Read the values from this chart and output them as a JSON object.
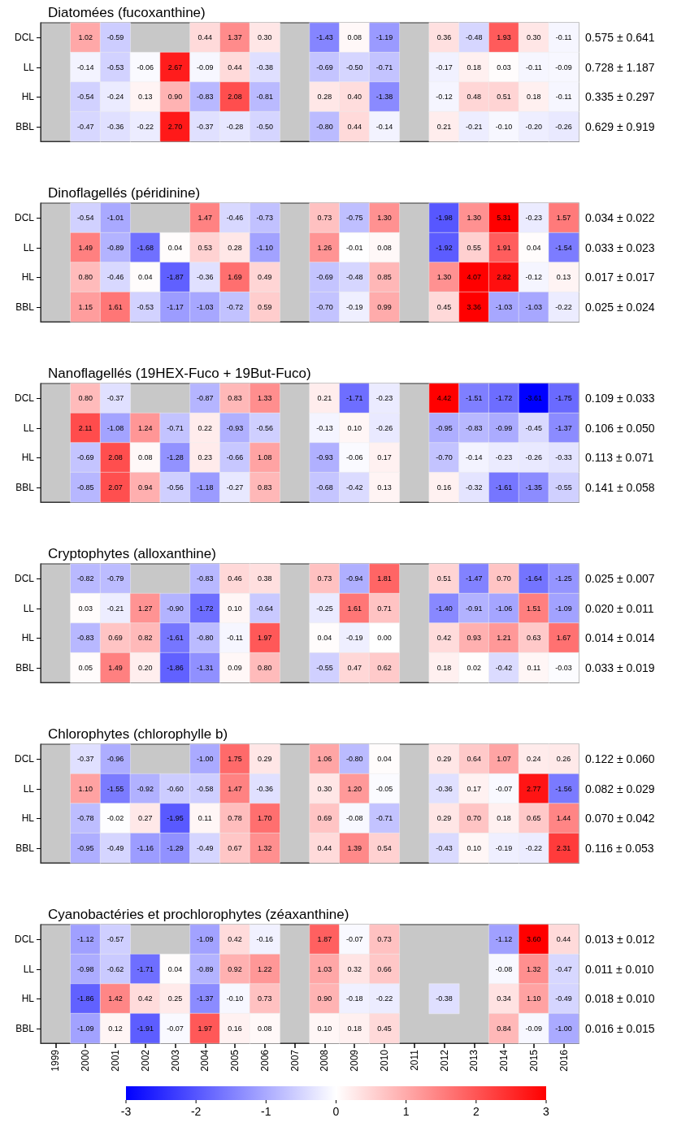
{
  "chart_data": [
    {
      "type": "heatmap",
      "title": "Diatomées (fucoxanthine)",
      "tick_labels": "y",
      "categories": [
        "1999",
        "2000",
        "2001",
        "2002",
        "2003",
        "2004",
        "2005",
        "2006",
        "2007",
        "2008",
        "2009",
        "2010",
        "2011",
        "2012",
        "2013",
        "2014",
        "2015",
        "2016"
      ],
      "y_categories": [
        "DCL",
        "LL",
        "HL",
        "BBL"
      ],
      "y2_categories": [
        "0.575 ± 0.641",
        "0.728 ± 1.187",
        "0.335 ± 0.297",
        "0.629 ± 0.919"
      ],
      "cells": [
        [
          null,
          1.02,
          -0.59,
          null,
          null,
          0.44,
          1.37,
          0.3,
          null,
          -1.43,
          0.08,
          -1.19,
          null,
          0.36,
          -0.48,
          1.93,
          0.3,
          -0.11
        ],
        [
          null,
          -0.14,
          -0.53,
          -0.06,
          2.67,
          -0.09,
          0.44,
          -0.38,
          null,
          -0.69,
          -0.5,
          -0.71,
          null,
          -0.17,
          0.18,
          0.03,
          -0.11,
          -0.09
        ],
        [
          null,
          -0.54,
          -0.24,
          0.13,
          0.9,
          -0.83,
          2.08,
          -0.81,
          null,
          0.28,
          0.4,
          -1.38,
          null,
          -0.12,
          0.48,
          0.51,
          0.18,
          -0.11
        ],
        [
          null,
          -0.47,
          -0.36,
          -0.22,
          2.7,
          -0.37,
          -0.28,
          -0.5,
          null,
          -0.8,
          0.44,
          -0.14,
          null,
          0.21,
          -0.21,
          -0.1,
          -0.2,
          -0.26
        ]
      ],
      "cell_labels": [
        [
          null,
          "1.02",
          "-0.59",
          null,
          null,
          "0.44",
          "1.37",
          "0.30",
          null,
          "-1.43",
          "0.08",
          "-1.19",
          null,
          "0.36",
          "-0.48",
          "1.93",
          "0.30",
          "-0.11"
        ],
        [
          null,
          "-0.14",
          "-0.53",
          "-0.06",
          "2.67",
          "-0.09",
          "0.44",
          "-0.38",
          null,
          "-0.69",
          "-0.50",
          "-0.71",
          null,
          "-0.17",
          "0.18",
          "0.03",
          "-0.11",
          "-0.09"
        ],
        [
          null,
          "-0.54",
          "-0.24",
          "0.13",
          "0.90",
          "-0.83",
          "2.08",
          "-0.81",
          null,
          "0.28",
          "0.40",
          "-1.38",
          null,
          "-0.12",
          "0.48",
          "0.51",
          "0.18",
          "-0.11"
        ],
        [
          null,
          "-0.47",
          "-0.36",
          "-0.22",
          "2.70",
          "-0.37",
          "-0.28",
          "-0.50",
          null,
          "-0.80",
          "0.44",
          "-0.14",
          null,
          "0.21",
          "-0.21",
          "-0.10",
          "-0.20",
          "-0.26"
        ]
      ]
    },
    {
      "type": "heatmap",
      "title": "Dinoflagellés (péridinine)",
      "tick_labels": "y",
      "categories": [
        "1999",
        "2000",
        "2001",
        "2002",
        "2003",
        "2004",
        "2005",
        "2006",
        "2007",
        "2008",
        "2009",
        "2010",
        "2011",
        "2012",
        "2013",
        "2014",
        "2015",
        "2016"
      ],
      "y_categories": [
        "DCL",
        "LL",
        "HL",
        "BBL"
      ],
      "y2_categories": [
        "0.034 ± 0.022",
        "0.033 ± 0.023",
        "0.017 ± 0.017",
        "0.025 ± 0.024"
      ],
      "cells": [
        [
          null,
          -0.54,
          -1.01,
          null,
          null,
          1.47,
          -0.46,
          -0.73,
          null,
          0.73,
          -0.75,
          1.3,
          null,
          -1.98,
          1.3,
          5.31,
          -0.23,
          1.57
        ],
        [
          null,
          1.49,
          -0.89,
          -1.68,
          0.04,
          0.53,
          0.28,
          -1.1,
          null,
          1.26,
          -0.01,
          0.08,
          null,
          -1.92,
          0.55,
          1.91,
          0.04,
          -1.54
        ],
        [
          null,
          0.8,
          -0.46,
          0.04,
          -1.87,
          -0.36,
          1.69,
          0.49,
          null,
          -0.69,
          -0.48,
          0.85,
          null,
          1.3,
          4.07,
          2.82,
          -0.12,
          0.13
        ],
        [
          null,
          1.15,
          1.61,
          -0.53,
          -1.17,
          -1.03,
          -0.72,
          0.59,
          null,
          -0.7,
          -0.19,
          0.99,
          null,
          0.45,
          3.36,
          -1.03,
          -1.03,
          -0.22
        ]
      ],
      "cell_labels": [
        [
          null,
          "-0.54",
          "-1.01",
          null,
          null,
          "1.47",
          "-0.46",
          "-0.73",
          null,
          "0.73",
          "-0.75",
          "1.30",
          null,
          "-1.98",
          "1.30",
          "5.31",
          "-0.23",
          "1.57"
        ],
        [
          null,
          "1.49",
          "-0.89",
          "-1.68",
          "0.04",
          "0.53",
          "0.28",
          "-1.10",
          null,
          "1.26",
          "-0.01",
          "0.08",
          null,
          "-1.92",
          "0.55",
          "1.91",
          "0.04",
          "-1.54"
        ],
        [
          null,
          "0.80",
          "-0.46",
          "0.04",
          "-1.87",
          "-0.36",
          "1.69",
          "0.49",
          null,
          "-0.69",
          "-0.48",
          "0.85",
          null,
          "1.30",
          "4.07",
          "2.82",
          "-0.12",
          "0.13"
        ],
        [
          null,
          "1.15",
          "1.61",
          "-0.53",
          "-1.17",
          "-1.03",
          "-0.72",
          "0.59",
          null,
          "-0.70",
          "-0.19",
          "0.99",
          null,
          "0.45",
          "3.36",
          "-1.03",
          "-1.03",
          "-0.22"
        ]
      ]
    },
    {
      "type": "heatmap",
      "title": "Nanoflagellés (19HEX-Fuco + 19But-Fuco)",
      "tick_labels": "y",
      "categories": [
        "1999",
        "2000",
        "2001",
        "2002",
        "2003",
        "2004",
        "2005",
        "2006",
        "2007",
        "2008",
        "2009",
        "2010",
        "2011",
        "2012",
        "2013",
        "2014",
        "2015",
        "2016"
      ],
      "y_categories": [
        "DCL",
        "LL",
        "HL",
        "BBL"
      ],
      "y2_categories": [
        "0.109 ± 0.033",
        "0.106 ± 0.050",
        "0.113 ± 0.071",
        "0.141 ± 0.058"
      ],
      "cells": [
        [
          null,
          0.8,
          -0.37,
          null,
          null,
          -0.87,
          0.83,
          1.33,
          null,
          0.21,
          -1.71,
          -0.23,
          null,
          4.42,
          -1.51,
          -1.72,
          -3.61,
          -1.75
        ],
        [
          null,
          2.11,
          -1.08,
          1.24,
          -0.71,
          0.22,
          -0.93,
          -0.56,
          null,
          -0.13,
          0.1,
          -0.26,
          null,
          -0.95,
          -0.83,
          -0.99,
          -0.45,
          -1.37
        ],
        [
          null,
          -0.69,
          2.08,
          0.08,
          -1.28,
          0.23,
          -0.66,
          1.08,
          null,
          -0.93,
          -0.06,
          0.17,
          null,
          -0.7,
          -0.14,
          -0.23,
          -0.26,
          -0.33
        ],
        [
          null,
          -0.85,
          2.07,
          0.94,
          -0.56,
          -1.18,
          -0.27,
          0.83,
          null,
          -0.68,
          -0.42,
          0.13,
          null,
          0.16,
          -0.32,
          -1.61,
          -1.35,
          -0.55
        ]
      ],
      "cell_labels": [
        [
          null,
          "0.80",
          "-0.37",
          null,
          null,
          "-0.87",
          "0.83",
          "1.33",
          null,
          "0.21",
          "-1.71",
          "-0.23",
          null,
          "4.42",
          "-1.51",
          "-1.72",
          "-3.61",
          "-1.75"
        ],
        [
          null,
          "2.11",
          "-1.08",
          "1.24",
          "-0.71",
          "0.22",
          "-0.93",
          "-0.56",
          null,
          "-0.13",
          "0.10",
          "-0.26",
          null,
          "-0.95",
          "-0.83",
          "-0.99",
          "-0.45",
          "-1.37"
        ],
        [
          null,
          "-0.69",
          "2.08",
          "0.08",
          "-1.28",
          "0.23",
          "-0.66",
          "1.08",
          null,
          "-0.93",
          "-0.06",
          "0.17",
          null,
          "-0.70",
          "-0.14",
          "-0.23",
          "-0.26",
          "-0.33"
        ],
        [
          null,
          "-0.85",
          "2.07",
          "0.94",
          "-0.56",
          "-1.18",
          "-0.27",
          "0.83",
          null,
          "-0.68",
          "-0.42",
          "0.13",
          null,
          "0.16",
          "-0.32",
          "-1.61",
          "-1.35",
          "-0.55"
        ]
      ]
    },
    {
      "type": "heatmap",
      "title": "Cryptophytes (alloxanthine)",
      "tick_labels": "y",
      "categories": [
        "1999",
        "2000",
        "2001",
        "2002",
        "2003",
        "2004",
        "2005",
        "2006",
        "2007",
        "2008",
        "2009",
        "2010",
        "2011",
        "2012",
        "2013",
        "2014",
        "2015",
        "2016"
      ],
      "y_categories": [
        "DCL",
        "LL",
        "HL",
        "BBL"
      ],
      "y2_categories": [
        "0.025 ± 0.007",
        "0.020 ± 0.011",
        "0.014 ± 0.014",
        "0.033 ± 0.019"
      ],
      "cells": [
        [
          null,
          -0.82,
          -0.79,
          null,
          null,
          -0.83,
          0.46,
          0.38,
          null,
          0.73,
          -0.94,
          1.81,
          null,
          0.51,
          -1.47,
          0.7,
          -1.64,
          -1.25
        ],
        [
          null,
          0.03,
          -0.21,
          1.27,
          -0.9,
          -1.72,
          0.1,
          -0.64,
          null,
          -0.25,
          1.61,
          0.71,
          null,
          -1.4,
          -0.91,
          -1.06,
          1.51,
          -1.09
        ],
        [
          null,
          -0.83,
          0.69,
          0.82,
          -1.61,
          -0.8,
          -0.11,
          1.97,
          null,
          0.04,
          -0.19,
          0.0,
          null,
          0.42,
          0.93,
          1.21,
          0.63,
          1.67
        ],
        [
          null,
          0.05,
          1.49,
          0.2,
          -1.86,
          -1.31,
          0.09,
          0.8,
          null,
          -0.55,
          0.47,
          0.62,
          null,
          0.18,
          0.02,
          -0.42,
          0.11,
          -0.03
        ]
      ],
      "cell_labels": [
        [
          null,
          "-0.82",
          "-0.79",
          null,
          null,
          "-0.83",
          "0.46",
          "0.38",
          null,
          "0.73",
          "-0.94",
          "1.81",
          null,
          "0.51",
          "-1.47",
          "0.70",
          "-1.64",
          "-1.25"
        ],
        [
          null,
          "0.03",
          "-0.21",
          "1.27",
          "-0.90",
          "-1.72",
          "0.10",
          "-0.64",
          null,
          "-0.25",
          "1.61",
          "0.71",
          null,
          "-1.40",
          "-0.91",
          "-1.06",
          "1.51",
          "-1.09"
        ],
        [
          null,
          "-0.83",
          "0.69",
          "0.82",
          "-1.61",
          "-0.80",
          "-0.11",
          "1.97",
          null,
          "0.04",
          "-0.19",
          "0.00",
          null,
          "0.42",
          "0.93",
          "1.21",
          "0.63",
          "1.67"
        ],
        [
          null,
          "0.05",
          "1.49",
          "0.20",
          "-1.86",
          "-1.31",
          "0.09",
          "0.80",
          null,
          "-0.55",
          "0.47",
          "0.62",
          null,
          "0.18",
          "0.02",
          "-0.42",
          "0.11",
          "-0.03"
        ]
      ]
    },
    {
      "type": "heatmap",
      "title": "Chlorophytes (chlorophylle b)",
      "tick_labels": "y",
      "categories": [
        "1999",
        "2000",
        "2001",
        "2002",
        "2003",
        "2004",
        "2005",
        "2006",
        "2007",
        "2008",
        "2009",
        "2010",
        "2011",
        "2012",
        "2013",
        "2014",
        "2015",
        "2016"
      ],
      "y_categories": [
        "DCL",
        "LL",
        "HL",
        "BBL"
      ],
      "y2_categories": [
        "0.122 ± 0.060",
        "0.082 ± 0.029",
        "0.070 ± 0.042",
        "0.116 ± 0.053"
      ],
      "cells": [
        [
          null,
          -0.37,
          -0.96,
          null,
          null,
          -1.0,
          1.75,
          0.29,
          null,
          1.06,
          -0.8,
          0.04,
          null,
          0.29,
          0.64,
          1.07,
          0.24,
          0.26
        ],
        [
          null,
          1.1,
          -1.55,
          -0.92,
          -0.6,
          -0.58,
          1.47,
          -0.36,
          null,
          0.3,
          1.2,
          -0.05,
          null,
          -0.36,
          0.17,
          -0.07,
          2.77,
          -1.56
        ],
        [
          null,
          -0.78,
          -0.02,
          0.27,
          -1.95,
          0.11,
          0.78,
          1.7,
          null,
          0.69,
          -0.08,
          -0.71,
          null,
          0.29,
          0.7,
          0.18,
          0.65,
          1.44
        ],
        [
          null,
          -0.95,
          -0.49,
          -1.16,
          -1.29,
          -0.49,
          0.67,
          1.32,
          null,
          0.44,
          1.39,
          0.54,
          null,
          -0.43,
          0.1,
          -0.19,
          -0.22,
          2.31
        ]
      ],
      "cell_labels": [
        [
          null,
          "-0.37",
          "-0.96",
          null,
          null,
          "-1.00",
          "1.75",
          "0.29",
          null,
          "1.06",
          "-0.80",
          "0.04",
          null,
          "0.29",
          "0.64",
          "1.07",
          "0.24",
          "0.26"
        ],
        [
          null,
          "1.10",
          "-1.55",
          "-0.92",
          "-0.60",
          "-0.58",
          "1.47",
          "-0.36",
          null,
          "0.30",
          "1.20",
          "-0.05",
          null,
          "-0.36",
          "0.17",
          "-0.07",
          "2.77",
          "-1.56"
        ],
        [
          null,
          "-0.78",
          "-0.02",
          "0.27",
          "-1.95",
          "0.11",
          "0.78",
          "1.70",
          null,
          "0.69",
          "-0.08",
          "-0.71",
          null,
          "0.29",
          "0.70",
          "0.18",
          "0.65",
          "1.44"
        ],
        [
          null,
          "-0.95",
          "-0.49",
          "-1.16",
          "-1.29",
          "-0.49",
          "0.67",
          "1.32",
          null,
          "0.44",
          "1.39",
          "0.54",
          null,
          "-0.43",
          "0.10",
          "-0.19",
          "-0.22",
          "2.31"
        ]
      ]
    },
    {
      "type": "heatmap",
      "title": "Cyanobactéries et prochlorophytes (zéaxanthine)",
      "clim": [
        -3,
        3
      ],
      "cticks": [
        -3,
        -2,
        -1,
        0,
        1,
        2,
        3
      ],
      "categories": [
        "1999",
        "2000",
        "2001",
        "2002",
        "2003",
        "2004",
        "2005",
        "2006",
        "2007",
        "2008",
        "2009",
        "2010",
        "2011",
        "2012",
        "2013",
        "2014",
        "2015",
        "2016"
      ],
      "y_categories": [
        "DCL",
        "LL",
        "HL",
        "BBL"
      ],
      "y2_categories": [
        "0.013 ± 0.012",
        "0.011 ± 0.010",
        "0.018 ± 0.010",
        "0.016 ± 0.015"
      ],
      "cells": [
        [
          null,
          -1.12,
          -0.57,
          null,
          null,
          -1.09,
          0.42,
          -0.16,
          null,
          1.87,
          -0.07,
          0.73,
          null,
          null,
          null,
          -1.12,
          3.6,
          0.44
        ],
        [
          null,
          -0.98,
          -0.62,
          -1.71,
          0.04,
          -0.89,
          0.92,
          1.22,
          null,
          1.03,
          0.32,
          0.66,
          null,
          null,
          null,
          -0.08,
          1.32,
          -0.47
        ],
        [
          null,
          -1.86,
          1.42,
          0.42,
          0.25,
          -1.37,
          -0.1,
          0.73,
          null,
          0.9,
          -0.18,
          -0.22,
          null,
          -0.38,
          null,
          0.34,
          1.1,
          -0.49
        ],
        [
          null,
          -1.09,
          0.12,
          -1.91,
          -0.07,
          1.97,
          0.16,
          0.08,
          null,
          0.1,
          0.18,
          0.45,
          null,
          null,
          null,
          0.84,
          -0.09,
          -1.0
        ]
      ],
      "cell_labels": [
        [
          null,
          "-1.12",
          "-0.57",
          null,
          null,
          "-1.09",
          "0.42",
          "-0.16",
          null,
          "1.87",
          "-0.07",
          "0.73",
          null,
          null,
          null,
          "-1.12",
          "3.60",
          "0.44"
        ],
        [
          null,
          "-0.98",
          "-0.62",
          "-1.71",
          "0.04",
          "-0.89",
          "0.92",
          "1.22",
          null,
          "1.03",
          "0.32",
          "0.66",
          null,
          null,
          null,
          "-0.08",
          "1.32",
          "-0.47"
        ],
        [
          null,
          "-1.86",
          "1.42",
          "0.42",
          "0.25",
          "-1.37",
          "-0.10",
          "0.73",
          null,
          "0.90",
          "-0.18",
          "-0.22",
          null,
          "-0.38",
          null,
          "0.34",
          "1.10",
          "-0.49"
        ],
        [
          null,
          "-1.09",
          "0.12",
          "-1.91",
          "-0.07",
          "1.97",
          "0.16",
          "0.08",
          null,
          "0.10",
          "0.18",
          "0.45",
          null,
          null,
          null,
          "0.84",
          "-0.09",
          "-1.00"
        ]
      ]
    }
  ]
}
